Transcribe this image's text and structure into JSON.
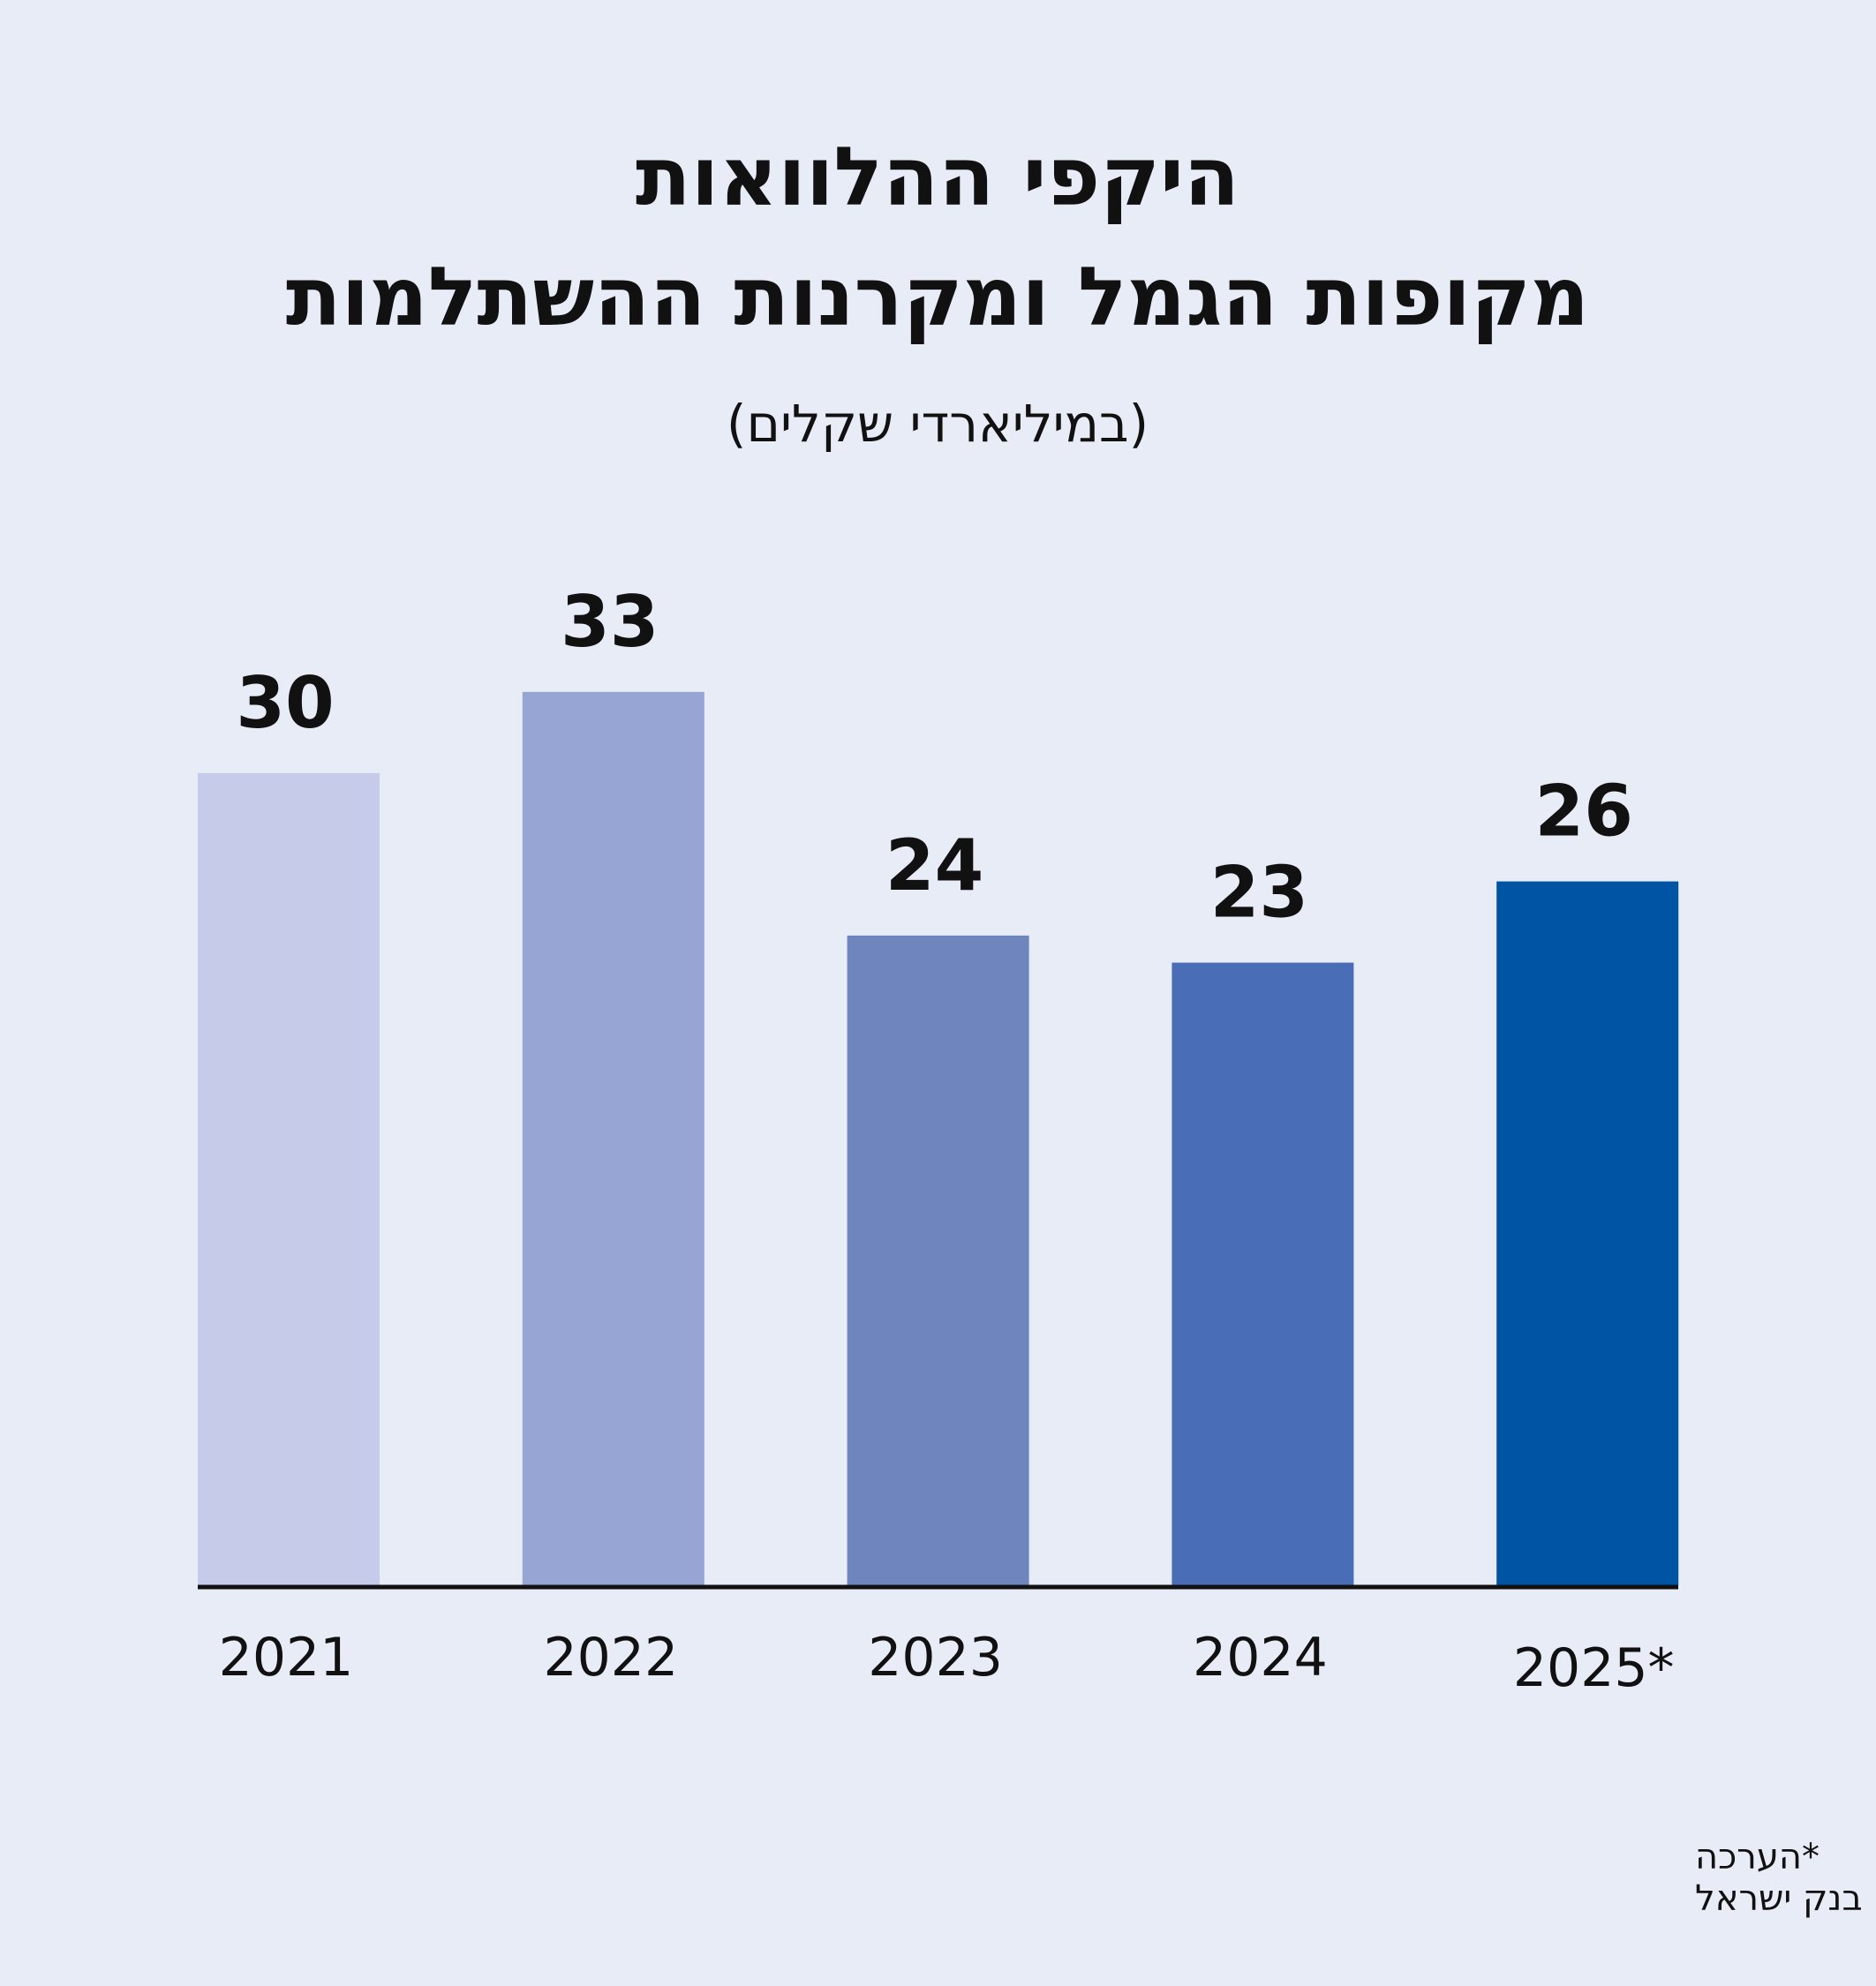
{
  "chart_data": {
    "type": "bar",
    "title": [
      "היקפי ההלוואות",
      "מקופות הגמל ומקרנות ההשתלמות"
    ],
    "subtitle": "(במיליארדי שקלים)",
    "categories": [
      "2021",
      "2022",
      "2023",
      "2024",
      "2025*"
    ],
    "values": [
      30,
      33,
      24,
      23,
      26
    ],
    "colors": [
      "#c7cbea",
      "#97a5d4",
      "#6f85be",
      "#496db7",
      "#0054a4"
    ],
    "xlabel": "",
    "ylabel": "",
    "grid": false,
    "ylim": [
      0,
      33
    ]
  },
  "footer": {
    "note": "*הערכה",
    "source": "מקור:  בנק ישראל"
  },
  "background": "#e8ecf7"
}
